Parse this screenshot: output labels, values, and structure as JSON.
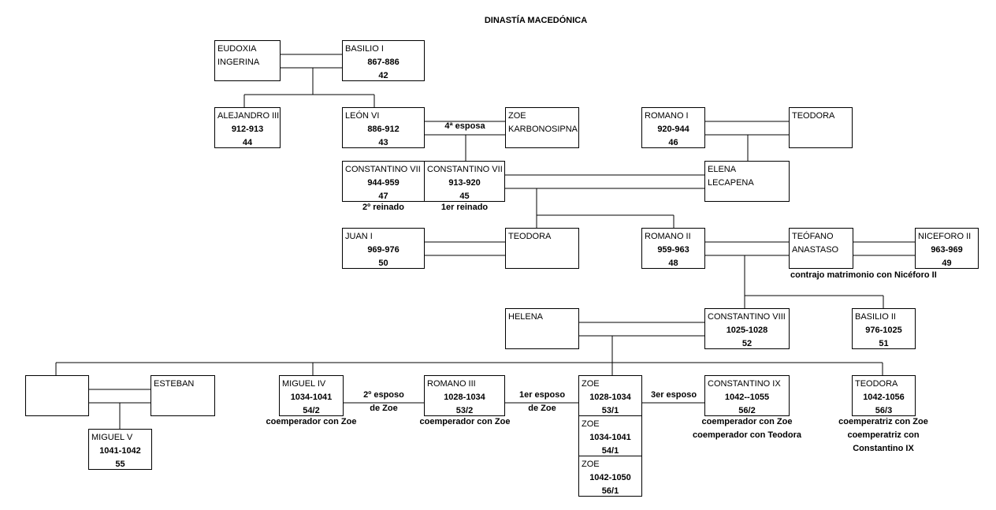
{
  "title": "DINASTÍA MACEDÓNICA",
  "people": {
    "eudoxia": {
      "name": "EUDOXIA",
      "name2": "INGERINA"
    },
    "basilio1": {
      "name": "BASILIO I",
      "years": "867-886",
      "num": "42"
    },
    "alejandro3": {
      "name": "ALEJANDRO III",
      "years": "912-913",
      "num": "44"
    },
    "leon6": {
      "name": "LEÓN VI",
      "years": "886-912",
      "num": "43"
    },
    "zoe_k": {
      "name": "ZOE",
      "name2": "KARBONOSIPNA"
    },
    "romano1": {
      "name": "ROMANO I",
      "years": "920-944",
      "num": "46"
    },
    "teodora_r1": {
      "name": "TEODORA"
    },
    "const7b": {
      "name": "CONSTANTINO VII",
      "years": "944-959",
      "num": "47"
    },
    "const7a": {
      "name": "CONSTANTINO VII",
      "years": "913-920",
      "num": "45"
    },
    "elena": {
      "name": "ELENA",
      "name2": "LECAPENA"
    },
    "juan1": {
      "name": "JUAN I",
      "years": "969-976",
      "num": "50"
    },
    "teodora_j": {
      "name": "TEODORA"
    },
    "romano2": {
      "name": "ROMANO II",
      "years": "959-963",
      "num": "48"
    },
    "teofano": {
      "name": "TEÓFANO",
      "name2": "ANASTASO"
    },
    "nicef2": {
      "name": "NICEFORO II",
      "years": "963-969",
      "num": "49"
    },
    "helena": {
      "name": "HELENA"
    },
    "const8": {
      "name": "CONSTANTINO VIII",
      "years": "1025-1028",
      "num": "52"
    },
    "basilio2": {
      "name": "BASILIO II",
      "years": "976-1025",
      "num": "51"
    },
    "esteban": {
      "name": "ESTEBAN"
    },
    "miguel4": {
      "name": "MIGUEL IV",
      "years": "1034-1041",
      "num": "54/2"
    },
    "romano3": {
      "name": "ROMANO III",
      "years": "1028-1034",
      "num": "53/2"
    },
    "zoe1": {
      "name": "ZOE",
      "years": "1028-1034",
      "num": "53/1"
    },
    "zoe2": {
      "name": "ZOE",
      "years": "1034-1041",
      "num": "54/1"
    },
    "zoe3": {
      "name": "ZOE",
      "years": "1042-1050",
      "num": "56/1"
    },
    "const9": {
      "name": "CONSTANTINO IX",
      "years": "1042--1055",
      "num": "56/2"
    },
    "teodora_f": {
      "name": "TEODORA",
      "years": "1042-1056",
      "num": "56/3"
    },
    "miguel5": {
      "name": "MIGUEL V",
      "years": "1041-1042",
      "num": "55"
    }
  },
  "labels": {
    "cuarta_esposa": "4ª esposa",
    "segundo_reinado": "2º reinado",
    "primer_reinado": "1er reinado",
    "contrajo": "contrajo matrimonio con Nicéforo II",
    "segundo_esposo_a": "2º esposo",
    "segundo_esposo_b": "de Zoe",
    "primer_esposo_a": "1er esposo",
    "primer_esposo_b": "de Zoe",
    "tercer_esposo": "3er esposo",
    "coemp_miguel4": "coemperador con Zoe",
    "coemp_romano3": "coemperador con Zoe",
    "coemp_const9_a": "coemperador con Zoe",
    "coemp_const9_b": "coemperador con  Teodora",
    "coemp_teodora_a": "coemperatriz con Zoe",
    "coemp_teodora_b": "coemperatriz con",
    "coemp_teodora_c": "Constantino IX"
  }
}
